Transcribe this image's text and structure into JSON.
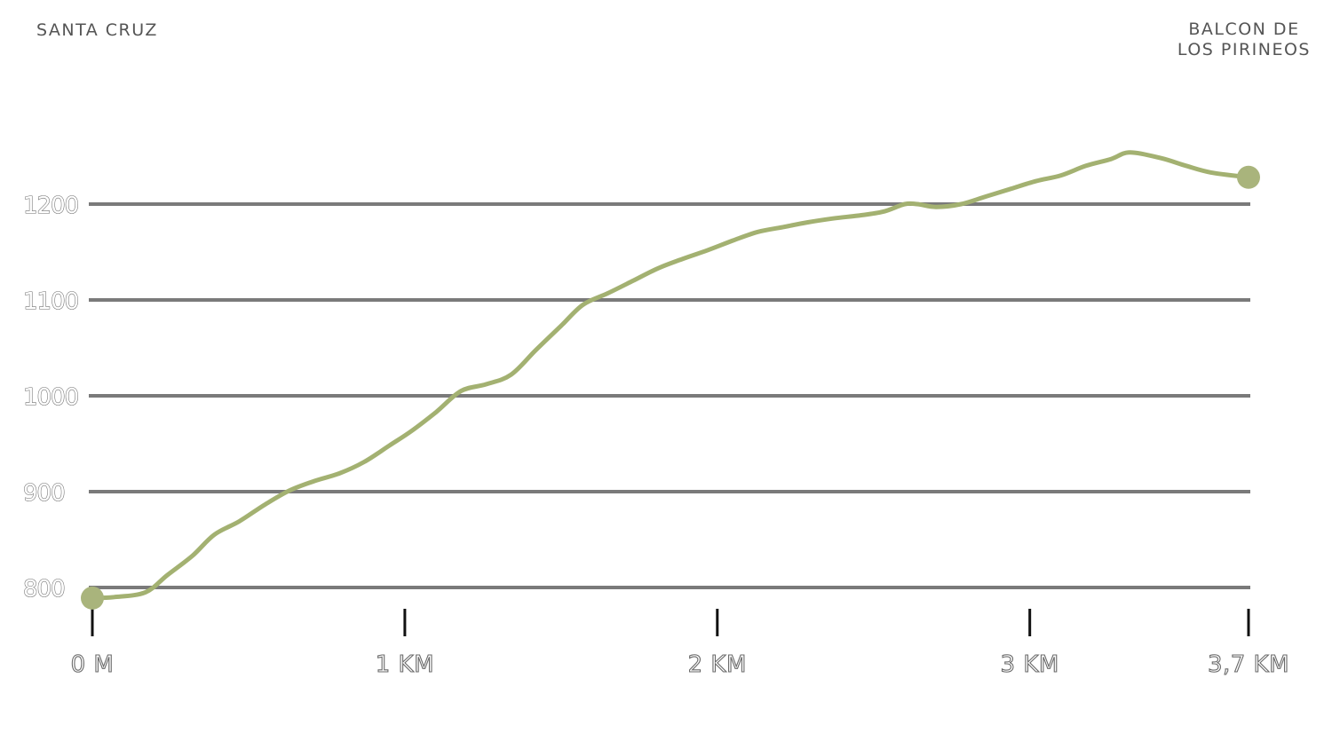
{
  "labels": {
    "start": "SANTA CRUZ",
    "end_line1": "BALCON DE",
    "end_line2": "LOS PIRINEOS"
  },
  "colors": {
    "profile": "#a3b171",
    "endpoints": "#a9b47c",
    "grid": "#7a7a7a",
    "ticks": "#111111"
  },
  "chart_data": {
    "type": "line",
    "title": "",
    "xlabel": "",
    "ylabel": "",
    "x_unit": "km",
    "xlim": [
      0,
      3.7
    ],
    "ylim": [
      750,
      1270
    ],
    "y_ticks": [
      800,
      900,
      1000,
      1100,
      1200
    ],
    "y_tick_labels": [
      "800",
      "900",
      "1000",
      "1100",
      "1200"
    ],
    "x_ticks": [
      0,
      1,
      2,
      3,
      3.7
    ],
    "x_tick_labels": [
      "0 M",
      "1 KM",
      "2 KM",
      "3 KM",
      "3,7 KM"
    ],
    "grid": true,
    "legend": "none",
    "series": [
      {
        "x": [
          0,
          0.07,
          0.17,
          0.24,
          0.32,
          0.39,
          0.47,
          0.55,
          0.63,
          0.71,
          0.79,
          0.87,
          0.95,
          1.02,
          1.1,
          1.18,
          1.26,
          1.34,
          1.42,
          1.5,
          1.57,
          1.65,
          1.73,
          1.81,
          1.89,
          1.97,
          2.05,
          2.13,
          2.21,
          2.29,
          2.37,
          2.45,
          2.53,
          2.6,
          2.64,
          2.7,
          2.78,
          2.86,
          2.94,
          3.02,
          3.1,
          3.18,
          3.26,
          3.32,
          3.42,
          3.5,
          3.58,
          3.7
        ],
        "y": [
          789,
          790,
          795,
          813,
          833,
          855,
          869,
          886,
          901,
          911,
          919,
          931,
          948,
          963,
          983,
          1005,
          1012,
          1022,
          1048,
          1073,
          1095,
          1107,
          1120,
          1133,
          1143,
          1152,
          1162,
          1171,
          1176,
          1181,
          1185,
          1188,
          1192,
          1200,
          1200,
          1197,
          1200,
          1208,
          1216,
          1224,
          1230,
          1240,
          1247,
          1254,
          1248,
          1240,
          1233,
          1228
        ]
      }
    ]
  }
}
